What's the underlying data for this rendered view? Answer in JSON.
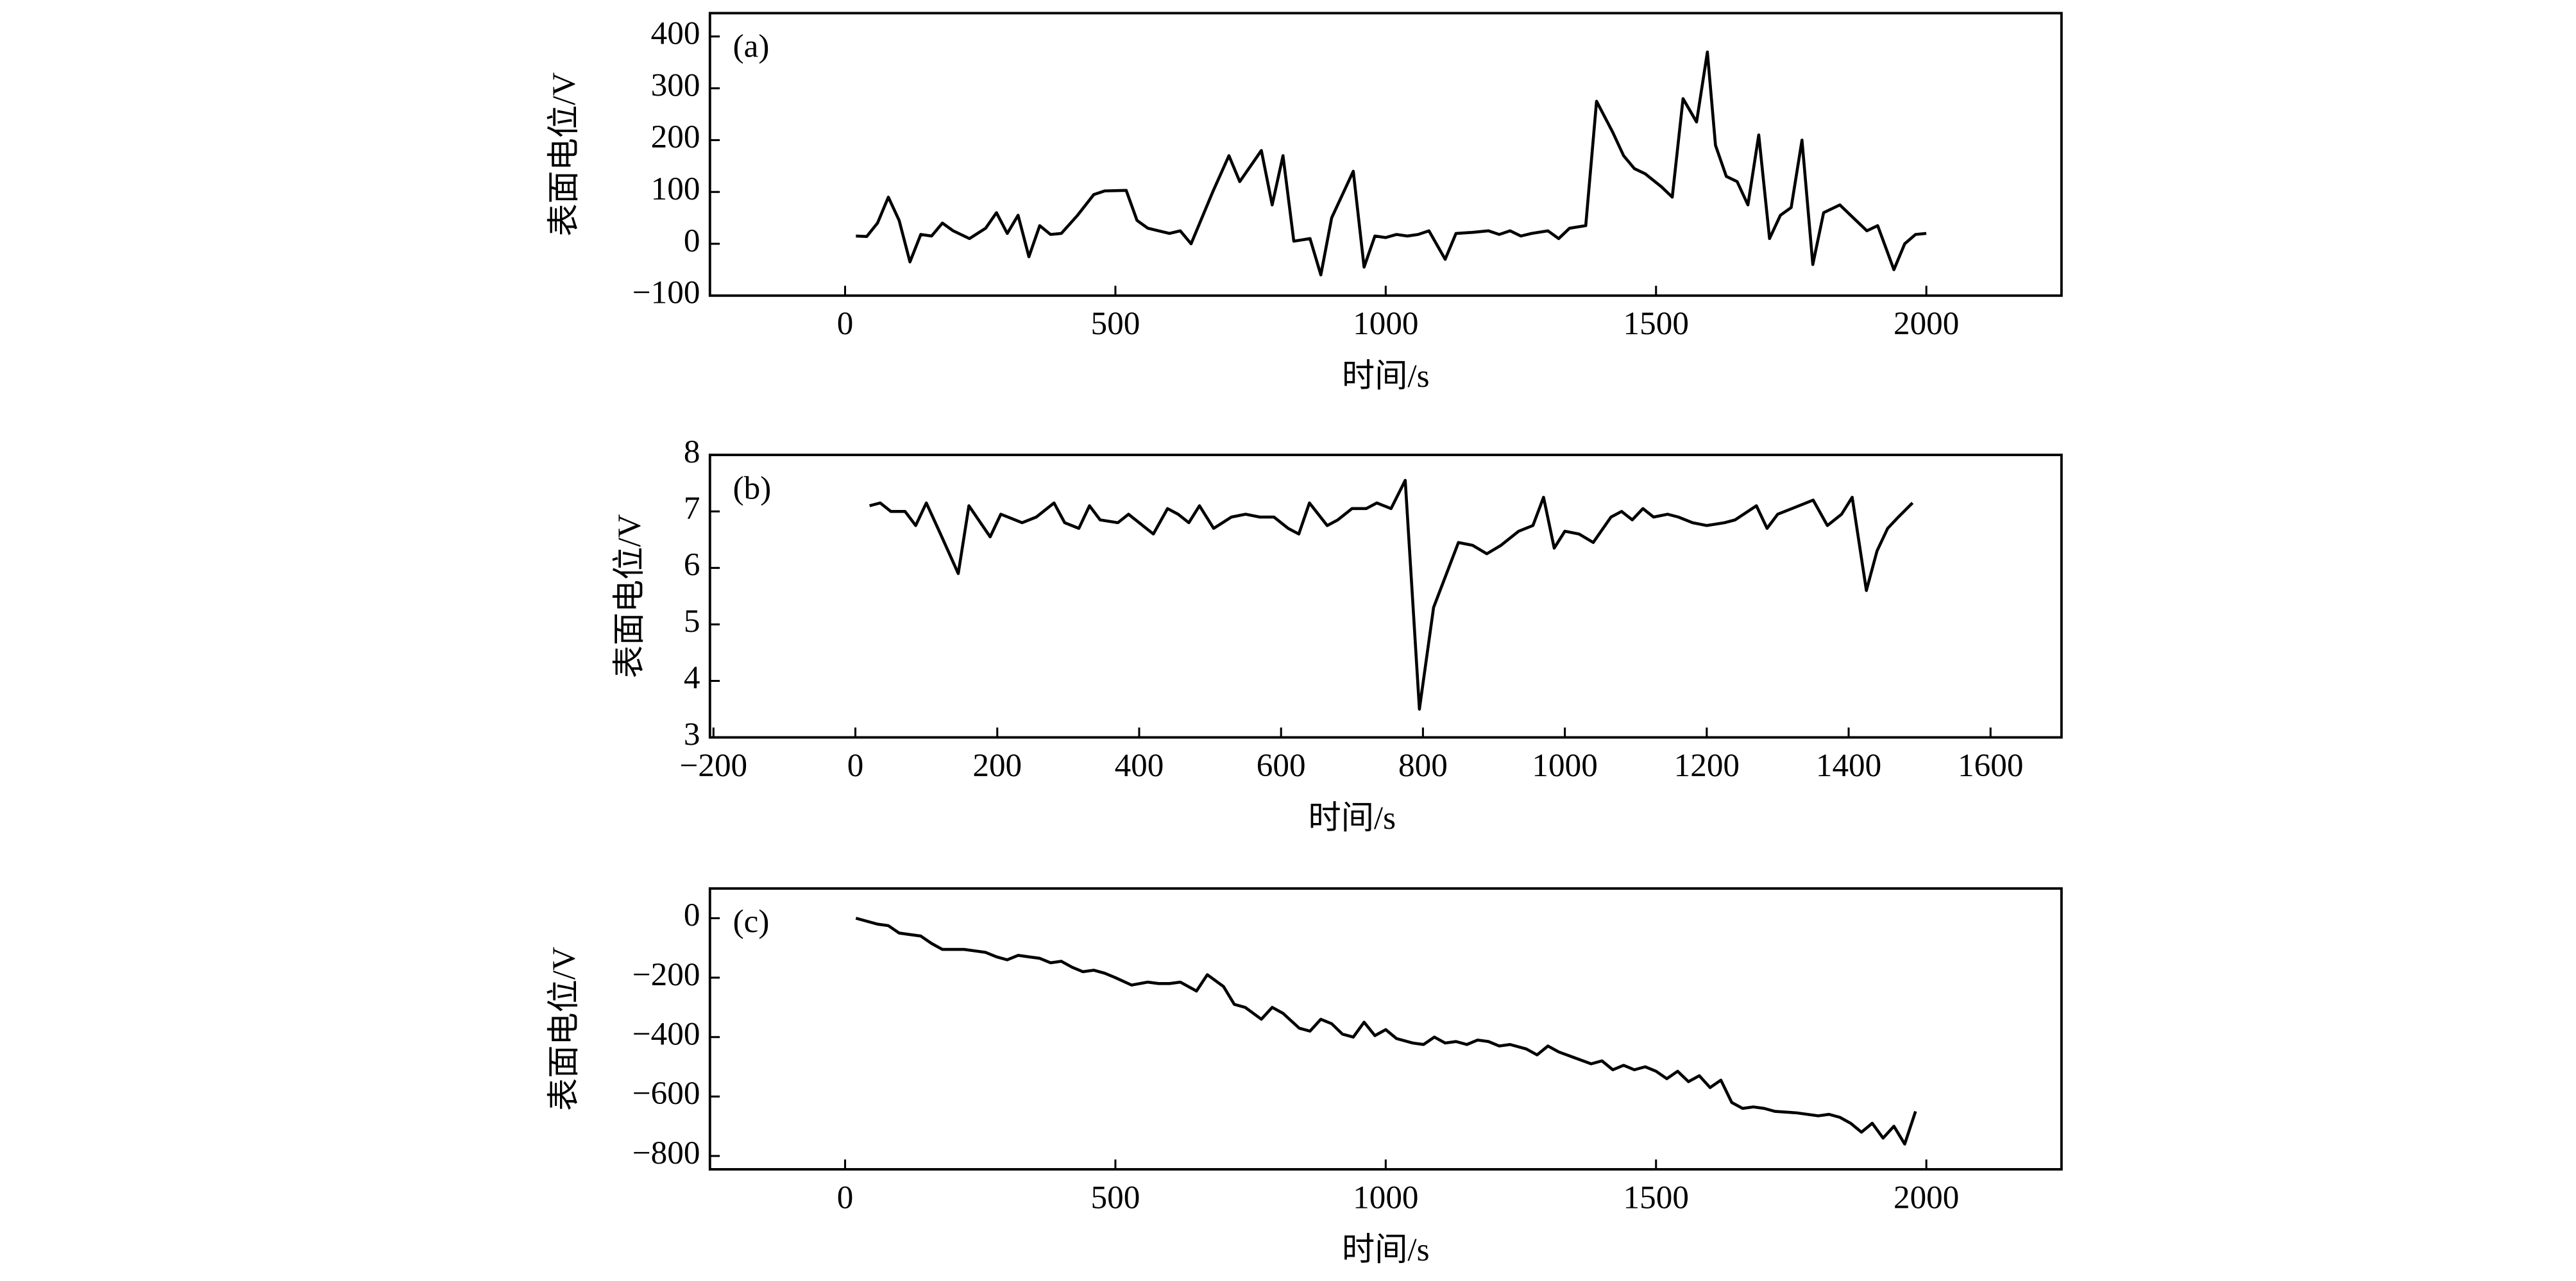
{
  "chart_data": [
    {
      "type": "line",
      "label": "(a)",
      "xlabel": "时间/s",
      "ylabel": "表面电位/V",
      "color": "#000000",
      "xlim": [
        -250,
        2250
      ],
      "ylim": [
        -100,
        445
      ],
      "xticks": [
        0,
        500,
        1000,
        1500,
        2000
      ],
      "yticks": [
        {
          "value": -100,
          "label": "−100"
        },
        0,
        100,
        200,
        300,
        400
      ],
      "x": [
        20,
        40,
        60,
        80,
        100,
        120,
        140,
        160,
        180,
        200,
        230,
        260,
        280,
        300,
        320,
        340,
        360,
        380,
        400,
        430,
        460,
        480,
        520,
        540,
        560,
        580,
        600,
        620,
        640,
        680,
        710,
        730,
        770,
        790,
        810,
        830,
        860,
        880,
        900,
        940,
        960,
        980,
        1000,
        1020,
        1040,
        1060,
        1080,
        1110,
        1130,
        1160,
        1190,
        1210,
        1230,
        1250,
        1270,
        1300,
        1320,
        1340,
        1370,
        1390,
        1420,
        1440,
        1460,
        1480,
        1510,
        1530,
        1550,
        1575,
        1595,
        1610,
        1630,
        1650,
        1670,
        1690,
        1710,
        1730,
        1750,
        1770,
        1790,
        1810,
        1840,
        1870,
        1890,
        1910,
        1940,
        1960,
        1980,
        2000
      ],
      "values": [
        15,
        14,
        40,
        90,
        45,
        -35,
        18,
        15,
        40,
        25,
        10,
        30,
        60,
        20,
        55,
        -25,
        35,
        18,
        20,
        55,
        95,
        102,
        103,
        45,
        30,
        25,
        20,
        25,
        0,
        100,
        170,
        120,
        180,
        75,
        170,
        5,
        10,
        -60,
        50,
        140,
        -45,
        15,
        12,
        18,
        15,
        18,
        25,
        -30,
        20,
        22,
        25,
        18,
        25,
        15,
        20,
        25,
        10,
        30,
        35,
        275,
        215,
        170,
        145,
        135,
        110,
        90,
        280,
        235,
        370,
        190,
        130,
        120,
        75,
        210,
        10,
        55,
        70,
        200,
        -40,
        60,
        75,
        45,
        25,
        35,
        -50,
        0,
        18,
        20
      ]
    },
    {
      "type": "line",
      "label": "(b)",
      "xlabel": "时间/s",
      "ylabel": "表面电位/V",
      "color": "#000000",
      "xlim": [
        -205,
        1700
      ],
      "ylim": [
        3,
        8
      ],
      "xticks": [
        {
          "value": -200,
          "label": "−200"
        },
        0,
        200,
        400,
        600,
        800,
        1000,
        1200,
        1400,
        1600
      ],
      "yticks": [
        3,
        4,
        5,
        6,
        7,
        8
      ],
      "x": [
        20,
        35,
        50,
        70,
        85,
        100,
        120,
        145,
        160,
        190,
        205,
        235,
        255,
        280,
        295,
        315,
        330,
        345,
        370,
        385,
        405,
        420,
        440,
        455,
        470,
        485,
        505,
        530,
        550,
        570,
        590,
        610,
        625,
        640,
        665,
        680,
        700,
        720,
        735,
        755,
        775,
        795,
        815,
        850,
        870,
        890,
        910,
        935,
        955,
        970,
        985,
        1000,
        1020,
        1040,
        1065,
        1080,
        1095,
        1110,
        1125,
        1145,
        1160,
        1180,
        1200,
        1225,
        1240,
        1270,
        1285,
        1300,
        1320,
        1350,
        1370,
        1390,
        1405,
        1425,
        1440,
        1455,
        1470,
        1490
      ],
      "values": [
        7.1,
        7.15,
        7.0,
        7.0,
        6.75,
        7.15,
        6.6,
        5.9,
        7.1,
        6.55,
        6.95,
        6.8,
        6.9,
        7.15,
        6.8,
        6.7,
        7.1,
        6.85,
        6.8,
        6.95,
        6.75,
        6.6,
        7.05,
        6.95,
        6.8,
        7.1,
        6.7,
        6.9,
        6.95,
        6.9,
        6.9,
        6.7,
        6.6,
        7.15,
        6.75,
        6.85,
        7.05,
        7.05,
        7.15,
        7.05,
        7.55,
        3.5,
        5.3,
        6.45,
        6.4,
        6.25,
        6.4,
        6.65,
        6.75,
        7.25,
        6.35,
        6.65,
        6.6,
        6.45,
        6.9,
        7.0,
        6.85,
        7.05,
        6.9,
        6.95,
        6.9,
        6.8,
        6.75,
        6.8,
        6.85,
        7.1,
        6.7,
        6.95,
        7.05,
        7.2,
        6.75,
        6.95,
        7.25,
        5.6,
        6.3,
        6.7,
        6.9,
        7.15
      ]
    },
    {
      "type": "line",
      "label": "(c)",
      "xlabel": "时间/s",
      "ylabel": "表面电位/V",
      "color": "#000000",
      "xlim": [
        -250,
        2250
      ],
      "ylim": [
        -845,
        100
      ],
      "xticks": [
        0,
        500,
        1000,
        1500,
        2000
      ],
      "yticks": [
        {
          "value": -800,
          "label": "−800"
        },
        {
          "value": -600,
          "label": "−600"
        },
        {
          "value": -400,
          "label": "−400"
        },
        {
          "value": -200,
          "label": "−200"
        },
        0
      ],
      "x": [
        20,
        40,
        60,
        80,
        100,
        120,
        140,
        160,
        180,
        220,
        240,
        260,
        280,
        300,
        320,
        340,
        360,
        380,
        400,
        420,
        440,
        460,
        480,
        500,
        530,
        560,
        580,
        600,
        620,
        650,
        670,
        700,
        720,
        740,
        770,
        790,
        810,
        840,
        860,
        880,
        900,
        920,
        940,
        960,
        980,
        1000,
        1020,
        1050,
        1070,
        1090,
        1110,
        1130,
        1150,
        1170,
        1190,
        1210,
        1230,
        1260,
        1280,
        1300,
        1320,
        1350,
        1380,
        1400,
        1420,
        1440,
        1460,
        1480,
        1500,
        1520,
        1540,
        1560,
        1580,
        1600,
        1620,
        1640,
        1660,
        1680,
        1700,
        1720,
        1760,
        1800,
        1820,
        1840,
        1860,
        1880,
        1900,
        1920,
        1940,
        1960,
        1980
      ],
      "values": [
        0,
        -10,
        -20,
        -25,
        -50,
        -55,
        -60,
        -85,
        -105,
        -105,
        -110,
        -115,
        -130,
        -140,
        -125,
        -130,
        -135,
        -150,
        -145,
        -165,
        -180,
        -175,
        -185,
        -200,
        -225,
        -215,
        -220,
        -220,
        -215,
        -245,
        -190,
        -230,
        -290,
        -300,
        -340,
        -300,
        -320,
        -370,
        -380,
        -340,
        -355,
        -390,
        -400,
        -350,
        -395,
        -375,
        -405,
        -420,
        -425,
        -400,
        -420,
        -415,
        -425,
        -410,
        -415,
        -430,
        -425,
        -440,
        -460,
        -430,
        -450,
        -470,
        -490,
        -480,
        -510,
        -495,
        -510,
        -500,
        -515,
        -540,
        -515,
        -550,
        -530,
        -570,
        -545,
        -620,
        -640,
        -635,
        -640,
        -650,
        -655,
        -665,
        -660,
        -670,
        -690,
        -720,
        -690,
        -740,
        -700,
        -760,
        -650
      ]
    }
  ]
}
